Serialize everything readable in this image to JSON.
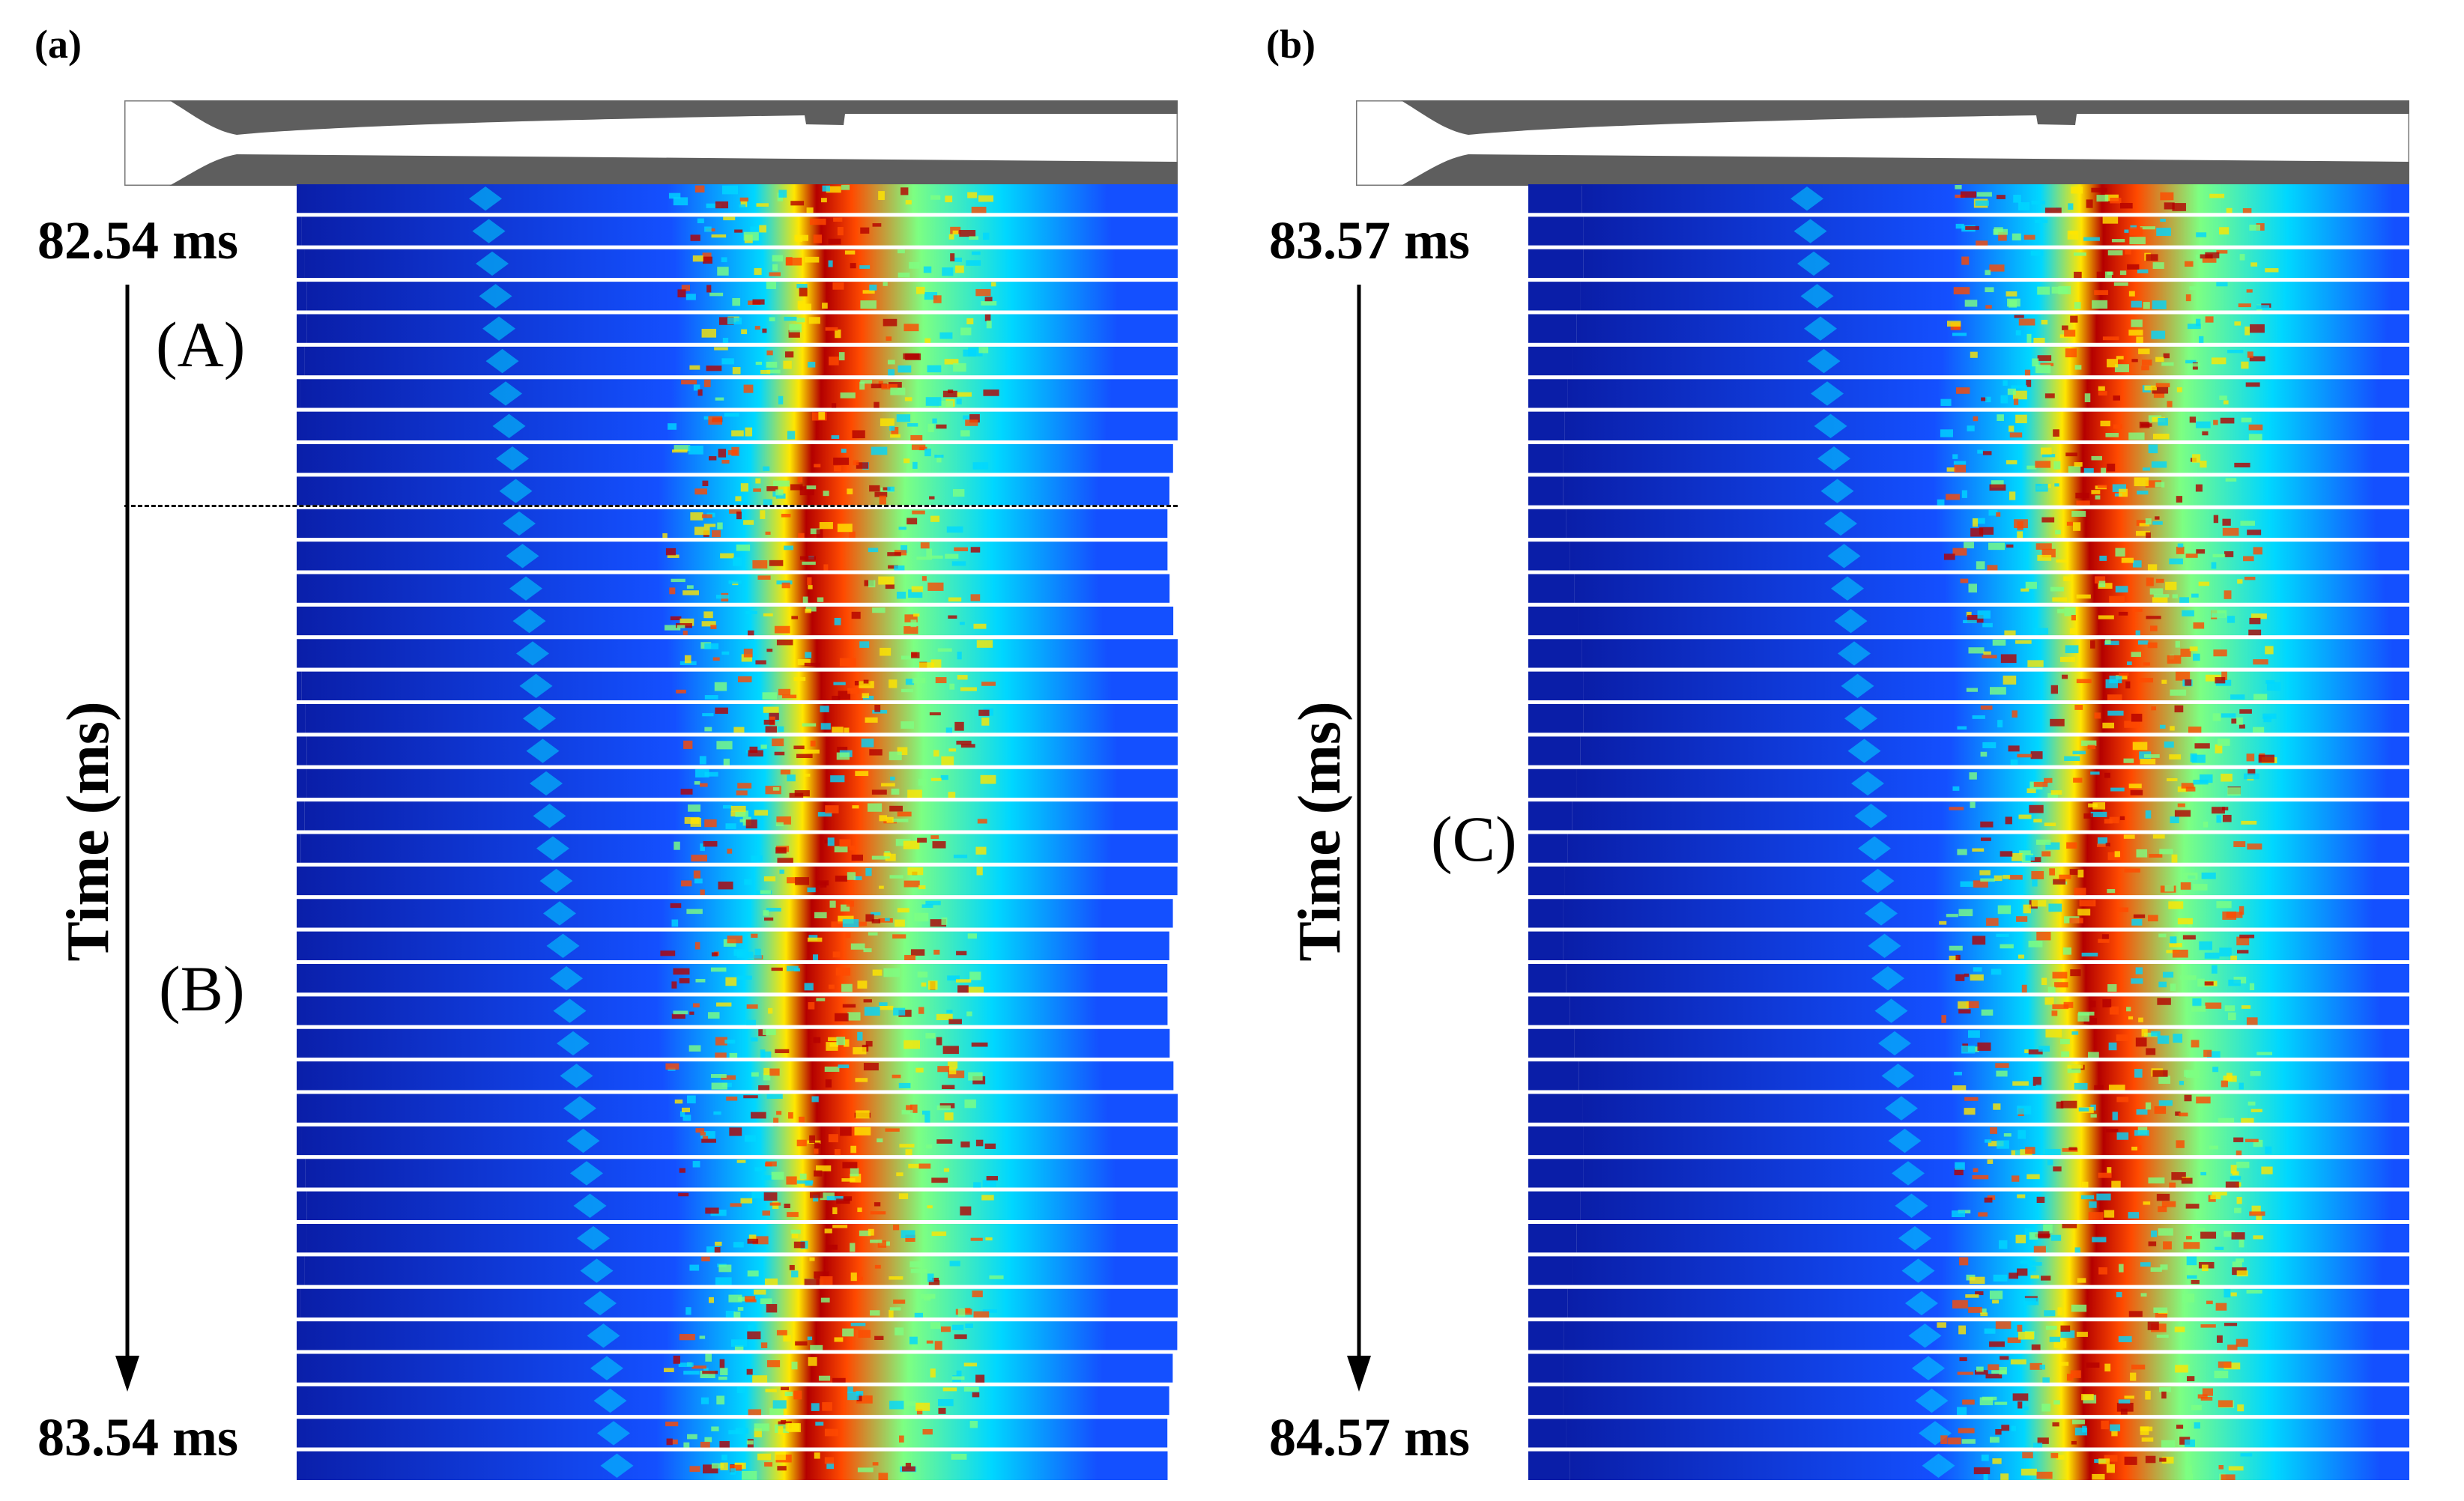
{
  "panels": [
    {
      "label": "(a)",
      "start_time": "82.54 ms",
      "end_time": "83.54 ms",
      "axis_title": "Time (ms)",
      "phases": [
        "(A)",
        "(B)"
      ]
    },
    {
      "label": "(b)",
      "start_time": "83.57 ms",
      "end_time": "84.57 ms",
      "axis_title": "Time (ms)",
      "phases": [
        "(C)"
      ]
    }
  ],
  "colormap": [
    "#0a1ea8",
    "#1450ff",
    "#00d7ff",
    "#7dff82",
    "#ffe600",
    "#ff4a00",
    "#b40000"
  ],
  "frames_per_panel": 40
}
